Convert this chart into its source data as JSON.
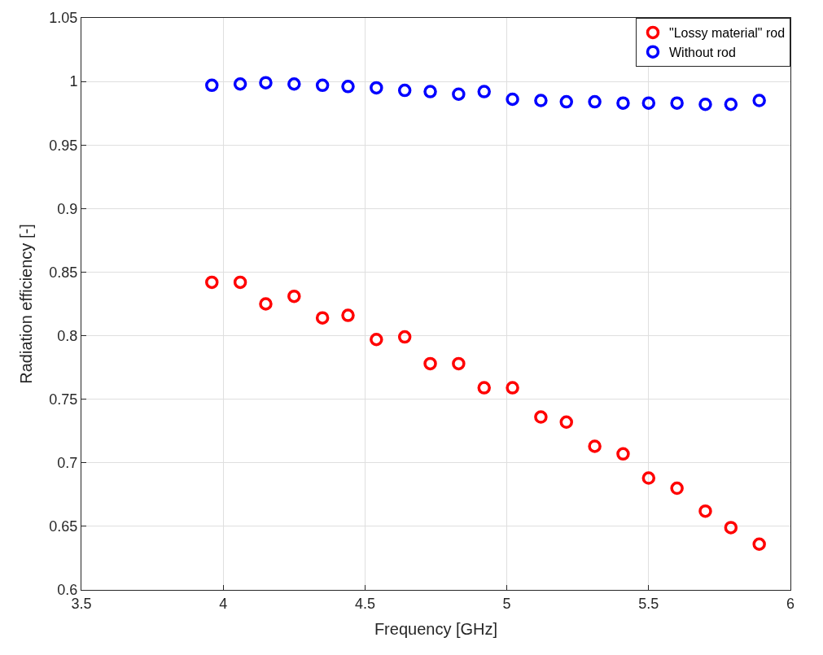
{
  "chart_data": {
    "type": "scatter",
    "xlabel": "Frequency [GHz]",
    "ylabel": "Radiation efficiency [-]",
    "x": [
      3.96,
      4.06,
      4.15,
      4.25,
      4.35,
      4.44,
      4.54,
      4.64,
      4.73,
      4.83,
      4.92,
      5.02,
      5.12,
      5.21,
      5.31,
      5.41,
      5.5,
      5.6,
      5.7,
      5.79,
      5.89
    ],
    "series": [
      {
        "name": "\"Lossy material\" rod",
        "color": "#ff0000",
        "values": [
          0.842,
          0.842,
          0.825,
          0.831,
          0.814,
          0.816,
          0.797,
          0.799,
          0.778,
          0.778,
          0.759,
          0.759,
          0.736,
          0.732,
          0.713,
          0.707,
          0.688,
          0.68,
          0.662,
          0.649,
          0.636
        ]
      },
      {
        "name": "Without rod",
        "color": "#0000ff",
        "values": [
          0.997,
          0.998,
          0.999,
          0.998,
          0.997,
          0.996,
          0.995,
          0.993,
          0.992,
          0.99,
          0.992,
          0.986,
          0.985,
          0.984,
          0.984,
          0.983,
          0.983,
          0.983,
          0.982,
          0.982,
          0.985
        ]
      }
    ],
    "xlim": [
      3.5,
      6
    ],
    "xticks": [
      3.5,
      4,
      4.5,
      5,
      5.5,
      6
    ],
    "ylim": [
      0.6,
      1.05
    ],
    "yticks": [
      0.6,
      0.65,
      0.7,
      0.75,
      0.8,
      0.85,
      0.9,
      0.95,
      1,
      1.05
    ],
    "grid": true,
    "legend": "top right",
    "marker": "circle"
  }
}
